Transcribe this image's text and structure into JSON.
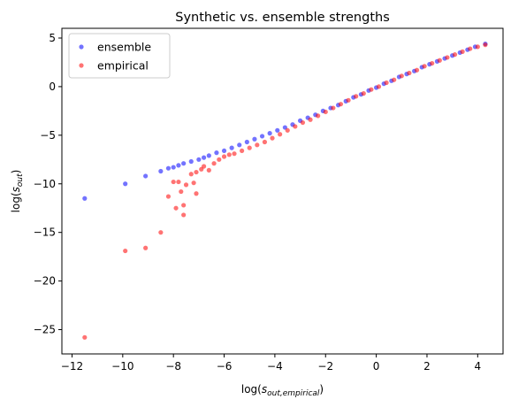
{
  "chart_data": {
    "type": "scatter",
    "title": "Synthetic vs. ensemble strengths",
    "xlabel": "log(s_out,empirical)",
    "ylabel": "log(s_out)",
    "xlim": [
      -12.4,
      5.0
    ],
    "ylim": [
      -27.5,
      6.0
    ],
    "xticks": [
      -12,
      -10,
      -8,
      -6,
      -4,
      -2,
      0,
      2,
      4
    ],
    "yticks": [
      -25,
      -20,
      -15,
      -10,
      -5,
      0,
      5
    ],
    "legend_position": "top-left",
    "series": [
      {
        "name": "ensemble",
        "color": "#0000ff",
        "points": [
          [
            -11.5,
            -11.5
          ],
          [
            -9.9,
            -10.0
          ],
          [
            -9.1,
            -9.2
          ],
          [
            -8.5,
            -8.7
          ],
          [
            -8.2,
            -8.4
          ],
          [
            -8.0,
            -8.3
          ],
          [
            -7.8,
            -8.1
          ],
          [
            -7.6,
            -7.9
          ],
          [
            -7.3,
            -7.7
          ],
          [
            -7.0,
            -7.5
          ],
          [
            -6.8,
            -7.3
          ],
          [
            -6.6,
            -7.1
          ],
          [
            -6.3,
            -6.8
          ],
          [
            -6.0,
            -6.6
          ],
          [
            -5.7,
            -6.3
          ],
          [
            -5.4,
            -6.0
          ],
          [
            -5.1,
            -5.7
          ],
          [
            -4.8,
            -5.4
          ],
          [
            -4.5,
            -5.1
          ],
          [
            -4.2,
            -4.8
          ],
          [
            -3.9,
            -4.5
          ],
          [
            -3.6,
            -4.2
          ],
          [
            -3.3,
            -3.9
          ],
          [
            -3.0,
            -3.5
          ],
          [
            -2.7,
            -3.2
          ],
          [
            -2.4,
            -2.9
          ],
          [
            -2.1,
            -2.5
          ],
          [
            -1.8,
            -2.2
          ],
          [
            -1.5,
            -1.9
          ],
          [
            -1.2,
            -1.5
          ],
          [
            -0.9,
            -1.1
          ],
          [
            -0.6,
            -0.8
          ],
          [
            -0.3,
            -0.4
          ],
          [
            0.0,
            -0.1
          ],
          [
            0.3,
            0.3
          ],
          [
            0.6,
            0.6
          ],
          [
            0.9,
            1.0
          ],
          [
            1.2,
            1.3
          ],
          [
            1.5,
            1.6
          ],
          [
            1.8,
            2.0
          ],
          [
            2.1,
            2.3
          ],
          [
            2.4,
            2.6
          ],
          [
            2.7,
            2.9
          ],
          [
            3.0,
            3.2
          ],
          [
            3.3,
            3.5
          ],
          [
            3.6,
            3.8
          ],
          [
            3.9,
            4.1
          ],
          [
            4.3,
            4.4
          ]
        ]
      },
      {
        "name": "empirical",
        "color": "#ff0000",
        "points": [
          [
            -11.5,
            -25.8
          ],
          [
            -9.9,
            -16.9
          ],
          [
            -9.1,
            -16.6
          ],
          [
            -8.5,
            -15.0
          ],
          [
            -8.2,
            -11.3
          ],
          [
            -7.9,
            -12.5
          ],
          [
            -7.6,
            -13.2
          ],
          [
            -7.6,
            -12.2
          ],
          [
            -8.0,
            -9.8
          ],
          [
            -7.8,
            -9.8
          ],
          [
            -7.7,
            -10.8
          ],
          [
            -7.2,
            -9.9
          ],
          [
            -7.5,
            -10.1
          ],
          [
            -7.1,
            -11.0
          ],
          [
            -7.3,
            -9.0
          ],
          [
            -7.1,
            -8.8
          ],
          [
            -6.9,
            -8.5
          ],
          [
            -6.8,
            -8.2
          ],
          [
            -6.6,
            -8.6
          ],
          [
            -6.4,
            -7.9
          ],
          [
            -6.2,
            -7.5
          ],
          [
            -6.0,
            -7.2
          ],
          [
            -5.8,
            -7.0
          ],
          [
            -5.6,
            -6.9
          ],
          [
            -5.3,
            -6.6
          ],
          [
            -5.0,
            -6.3
          ],
          [
            -4.7,
            -6.0
          ],
          [
            -4.4,
            -5.7
          ],
          [
            -4.1,
            -5.3
          ],
          [
            -3.8,
            -4.9
          ],
          [
            -3.5,
            -4.5
          ],
          [
            -3.2,
            -4.1
          ],
          [
            -2.9,
            -3.7
          ],
          [
            -2.6,
            -3.4
          ],
          [
            -2.3,
            -3.0
          ],
          [
            -2.0,
            -2.6
          ],
          [
            -1.7,
            -2.2
          ],
          [
            -1.4,
            -1.8
          ],
          [
            -1.1,
            -1.4
          ],
          [
            -0.8,
            -1.0
          ],
          [
            -0.5,
            -0.7
          ],
          [
            -0.2,
            -0.3
          ],
          [
            0.1,
            0.0
          ],
          [
            0.4,
            0.4
          ],
          [
            0.7,
            0.7
          ],
          [
            1.0,
            1.1
          ],
          [
            1.3,
            1.4
          ],
          [
            1.6,
            1.7
          ],
          [
            1.9,
            2.1
          ],
          [
            2.2,
            2.4
          ],
          [
            2.5,
            2.7
          ],
          [
            2.8,
            3.0
          ],
          [
            3.1,
            3.3
          ],
          [
            3.4,
            3.6
          ],
          [
            3.7,
            3.9
          ],
          [
            4.0,
            4.1
          ],
          [
            4.3,
            4.3
          ]
        ]
      }
    ]
  }
}
